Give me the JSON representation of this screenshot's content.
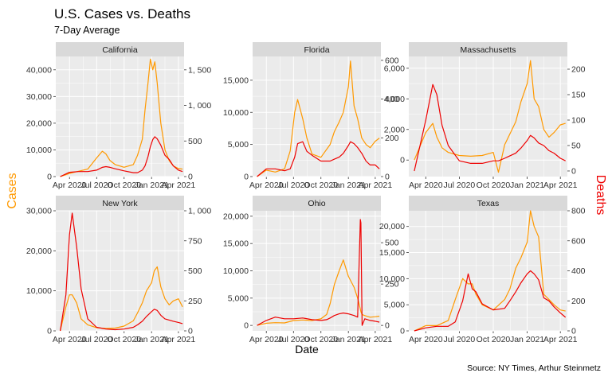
{
  "figure": {
    "title": "U.S. Cases vs. Deaths",
    "subtitle": "7-Day Average",
    "xlabel": "Date",
    "ylabel_left": "Cases",
    "ylabel_right": "Deaths",
    "caption": "Source: NY Times, Arthur Steinmetz"
  },
  "colors": {
    "cases": "#FF9900",
    "deaths": "#EE0000",
    "panel_bg": "#EBEBEB",
    "strip_bg": "#D9D9D9",
    "grid": "#FFFFFF"
  },
  "x_axis": {
    "tick_labels": [
      "Apr 2020",
      "Jul 2020",
      "Oct 2020",
      "Jan 2021",
      "Apr 2021"
    ]
  },
  "chart_data": [
    {
      "type": "line",
      "state": "California",
      "x": [
        "2020-03-01",
        "2020-04-01",
        "2020-05-01",
        "2020-06-01",
        "2020-07-01",
        "2020-07-20",
        "2020-08-01",
        "2020-08-15",
        "2020-09-01",
        "2020-10-01",
        "2020-11-01",
        "2020-11-15",
        "2020-12-01",
        "2020-12-10",
        "2020-12-20",
        "2020-12-28",
        "2021-01-05",
        "2021-01-12",
        "2021-01-20",
        "2021-02-01",
        "2021-02-15",
        "2021-03-01",
        "2021-03-15",
        "2021-04-01",
        "2021-04-15"
      ],
      "cases": [
        0,
        1200,
        2000,
        2800,
        7000,
        9500,
        8500,
        6000,
        4500,
        3500,
        4500,
        8000,
        14000,
        25000,
        35000,
        44000,
        40000,
        43000,
        35000,
        20000,
        10000,
        6000,
        4000,
        3000,
        2800
      ],
      "deaths": [
        0,
        60,
        70,
        70,
        90,
        130,
        140,
        130,
        110,
        80,
        55,
        55,
        90,
        150,
        280,
        420,
        520,
        560,
        530,
        440,
        300,
        240,
        150,
        90,
        70
      ],
      "cases_ylim": [
        0,
        45000
      ],
      "deaths_ylim": [
        0,
        1688
      ],
      "cases_ticks": [
        "0",
        "10,000",
        "20,000",
        "30,000",
        "40,000"
      ],
      "deaths_ticks": [
        "0",
        "500",
        "1, 000",
        "1, 500"
      ]
    },
    {
      "type": "line",
      "state": "Florida",
      "x": [
        "2020-03-01",
        "2020-04-01",
        "2020-05-01",
        "2020-06-01",
        "2020-06-20",
        "2020-07-05",
        "2020-07-15",
        "2020-08-01",
        "2020-08-15",
        "2020-09-01",
        "2020-10-01",
        "2020-11-01",
        "2020-11-15",
        "2020-12-01",
        "2020-12-15",
        "2021-01-01",
        "2021-01-08",
        "2021-01-20",
        "2021-02-01",
        "2021-02-15",
        "2021-03-01",
        "2021-03-15",
        "2021-04-01",
        "2021-04-15"
      ],
      "cases": [
        0,
        1000,
        700,
        1200,
        4000,
        10000,
        12000,
        9000,
        6000,
        3500,
        3000,
        5000,
        7000,
        8500,
        10000,
        14000,
        18000,
        11000,
        9000,
        6000,
        5000,
        4500,
        5500,
        6000
      ],
      "deaths": [
        0,
        40,
        40,
        30,
        40,
        100,
        170,
        180,
        130,
        110,
        80,
        80,
        90,
        100,
        120,
        160,
        180,
        170,
        150,
        120,
        80,
        60,
        60,
        40
      ],
      "cases_ylim": [
        0,
        18700
      ],
      "deaths_ylim": [
        0,
        620
      ],
      "cases_ticks": [
        "0",
        "5,000",
        "10,000",
        "15,000"
      ],
      "deaths_ticks": [
        "0",
        "200",
        "400",
        "600"
      ]
    },
    {
      "type": "line",
      "state": "Massachusetts",
      "x": [
        "2020-03-01",
        "2020-04-01",
        "2020-04-20",
        "2020-05-01",
        "2020-05-15",
        "2020-06-01",
        "2020-07-01",
        "2020-08-01",
        "2020-09-01",
        "2020-10-01",
        "2020-10-15",
        "2020-11-01",
        "2020-12-01",
        "2020-12-15",
        "2021-01-01",
        "2021-01-10",
        "2021-01-20",
        "2021-02-01",
        "2021-02-15",
        "2021-03-01",
        "2021-03-15",
        "2021-04-01",
        "2021-04-15"
      ],
      "cases": [
        0,
        1800,
        2400,
        1500,
        800,
        500,
        300,
        250,
        300,
        500,
        -800,
        1000,
        2500,
        3800,
        5000,
        6500,
        4000,
        3500,
        2000,
        1500,
        1800,
        2300,
        2400
      ],
      "deaths": [
        0,
        100,
        170,
        150,
        90,
        50,
        20,
        15,
        15,
        20,
        20,
        25,
        35,
        45,
        60,
        70,
        65,
        55,
        50,
        40,
        35,
        25,
        20
      ],
      "cases_ylim": [
        -1080,
        6770
      ],
      "deaths_ylim": [
        -11,
        225
      ],
      "cases_ticks": [
        "0",
        "2,000",
        "4,000",
        "6,000"
      ],
      "deaths_ticks": [
        "0",
        "50",
        "100",
        "150",
        "200"
      ]
    },
    {
      "type": "line",
      "state": "New York",
      "x": [
        "2020-03-01",
        "2020-03-20",
        "2020-04-01",
        "2020-04-10",
        "2020-04-25",
        "2020-05-10",
        "2020-06-01",
        "2020-07-01",
        "2020-08-01",
        "2020-09-01",
        "2020-10-01",
        "2020-11-01",
        "2020-11-15",
        "2020-12-01",
        "2020-12-15",
        "2021-01-01",
        "2021-01-10",
        "2021-01-20",
        "2021-02-01",
        "2021-02-15",
        "2021-03-01",
        "2021-03-15",
        "2021-04-01",
        "2021-04-15"
      ],
      "cases": [
        0,
        6000,
        9000,
        9000,
        7000,
        3000,
        1500,
        800,
        600,
        700,
        1200,
        2500,
        4500,
        7000,
        10000,
        12000,
        15000,
        16000,
        11000,
        8000,
        6500,
        7500,
        8000,
        6000
      ],
      "deaths": [
        0,
        300,
        800,
        980,
        700,
        350,
        100,
        30,
        15,
        10,
        15,
        30,
        50,
        80,
        120,
        160,
        180,
        170,
        130,
        100,
        90,
        80,
        70,
        60
      ],
      "cases_ylim": [
        0,
        30000
      ],
      "deaths_ylim": [
        0,
        1000
      ],
      "cases_ticks": [
        "0",
        "10,000",
        "20,000",
        "30,000"
      ],
      "deaths_ticks": [
        "0",
        "250",
        "500",
        "750",
        "1, 000"
      ]
    },
    {
      "type": "line",
      "state": "Ohio",
      "x": [
        "2020-03-01",
        "2020-04-01",
        "2020-05-01",
        "2020-06-01",
        "2020-07-01",
        "2020-08-01",
        "2020-09-01",
        "2020-10-01",
        "2020-10-20",
        "2020-11-01",
        "2020-11-15",
        "2020-12-01",
        "2020-12-15",
        "2021-01-01",
        "2021-01-20",
        "2021-02-01",
        "2021-02-10",
        "2021-02-12",
        "2021-02-16",
        "2021-02-25",
        "2021-03-15",
        "2021-04-01",
        "2021-04-15"
      ],
      "cases": [
        0,
        400,
        500,
        450,
        900,
        1000,
        900,
        1200,
        2000,
        4000,
        7500,
        10000,
        12000,
        9000,
        7000,
        5000,
        3000,
        2500,
        2000,
        1800,
        1500,
        1600,
        1700
      ],
      "deaths": [
        0,
        30,
        50,
        40,
        40,
        45,
        35,
        30,
        35,
        45,
        60,
        70,
        75,
        70,
        60,
        50,
        640,
        620,
        0,
        40,
        30,
        25,
        20
      ],
      "cases_ylim": [
        -1000,
        21000
      ],
      "deaths_ylim": [
        -33,
        693
      ],
      "cases_ticks": [
        "0",
        "5,000",
        "10,000",
        "15,000",
        "20,000"
      ],
      "deaths_ticks": [
        "0",
        "250",
        "500"
      ]
    },
    {
      "type": "line",
      "state": "Texas",
      "x": [
        "2020-03-01",
        "2020-04-01",
        "2020-05-01",
        "2020-06-01",
        "2020-06-20",
        "2020-07-10",
        "2020-07-25",
        "2020-08-05",
        "2020-08-15",
        "2020-09-01",
        "2020-10-01",
        "2020-11-01",
        "2020-11-15",
        "2020-12-01",
        "2020-12-15",
        "2021-01-01",
        "2021-01-10",
        "2021-01-20",
        "2021-02-01",
        "2021-02-15",
        "2021-03-01",
        "2021-03-15",
        "2021-04-01",
        "2021-04-15"
      ],
      "cases": [
        0,
        1000,
        1000,
        2000,
        6000,
        10000,
        9000,
        9000,
        7000,
        5000,
        4000,
        6000,
        8000,
        12000,
        14000,
        17000,
        23000,
        20000,
        18000,
        7000,
        6000,
        5000,
        4000,
        3800
      ],
      "deaths": [
        0,
        20,
        30,
        30,
        60,
        200,
        380,
        280,
        260,
        180,
        140,
        150,
        200,
        260,
        320,
        380,
        400,
        380,
        340,
        220,
        200,
        160,
        120,
        90
      ],
      "cases_ylim": [
        0,
        23000
      ],
      "deaths_ylim": [
        0,
        800
      ],
      "cases_ticks": [
        "0",
        "5,000",
        "10,000",
        "15,000",
        "20,000"
      ],
      "deaths_ticks": [
        "0",
        "200",
        "400",
        "600",
        "800"
      ]
    }
  ]
}
